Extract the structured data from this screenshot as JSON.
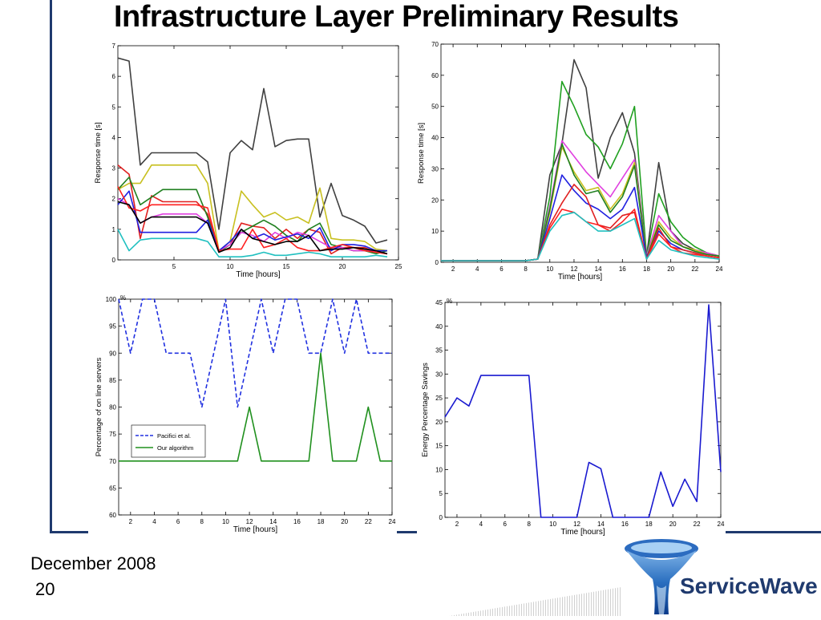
{
  "slide": {
    "title": "Infrastructure Layer Preliminary Results",
    "date": "December 2008",
    "page_number": "20",
    "logo_text": "ServiceWave",
    "accent_color": "#1f3a6e"
  },
  "chart_data": [
    {
      "type": "line",
      "xlabel": "Time [hours]",
      "ylabel": "Response time [s]",
      "xlim": [
        0,
        25
      ],
      "ylim": [
        0,
        7
      ],
      "xticks": [
        5,
        10,
        15,
        20,
        25
      ],
      "yticks": [
        0,
        1,
        2,
        3,
        4,
        5,
        6,
        7
      ],
      "x": [
        0,
        1,
        2,
        3,
        4,
        5,
        6,
        7,
        8,
        9,
        10,
        11,
        12,
        13,
        14,
        15,
        16,
        17,
        18,
        19,
        20,
        21,
        22,
        23,
        24
      ],
      "series": [
        {
          "color": "#404040",
          "values": [
            6.6,
            6.5,
            3.1,
            3.5,
            3.5,
            3.5,
            3.5,
            3.5,
            3.2,
            1.0,
            3.5,
            3.9,
            3.6,
            5.6,
            3.7,
            3.9,
            3.95,
            3.95,
            1.4,
            2.5,
            1.45,
            1.3,
            1.1,
            0.55,
            0.65
          ]
        },
        {
          "color": "#c8c020",
          "values": [
            2.3,
            2.5,
            2.5,
            3.1,
            3.1,
            3.1,
            3.1,
            3.1,
            2.5,
            0.3,
            0.6,
            2.25,
            1.8,
            1.4,
            1.55,
            1.3,
            1.4,
            1.2,
            2.35,
            0.7,
            0.65,
            0.65,
            0.6,
            0.35,
            0.3
          ]
        },
        {
          "color": "#e02020",
          "values": [
            3.1,
            2.8,
            0.7,
            2.1,
            1.9,
            1.9,
            1.9,
            1.9,
            1.5,
            0.3,
            0.5,
            1.2,
            1.1,
            1.05,
            0.7,
            1.0,
            0.7,
            1.0,
            0.9,
            0.2,
            0.4,
            0.4,
            0.4,
            0.25,
            0.2
          ]
        },
        {
          "color": "#208020",
          "values": [
            2.3,
            2.7,
            1.8,
            2.05,
            2.3,
            2.3,
            2.3,
            2.3,
            1.4,
            0.25,
            0.5,
            0.9,
            1.1,
            1.3,
            1.1,
            0.8,
            0.6,
            1.0,
            1.2,
            0.5,
            0.4,
            0.3,
            0.3,
            0.2,
            0.3
          ]
        },
        {
          "color": "#e040e0",
          "values": [
            2.0,
            1.8,
            1.2,
            1.4,
            1.5,
            1.5,
            1.5,
            1.5,
            1.2,
            0.3,
            0.5,
            0.9,
            0.8,
            0.6,
            0.9,
            0.7,
            0.9,
            0.8,
            0.6,
            0.4,
            0.4,
            0.3,
            0.3,
            0.3,
            0.2
          ]
        },
        {
          "color": "#2020e0",
          "values": [
            1.8,
            2.25,
            0.9,
            0.9,
            0.9,
            0.9,
            0.9,
            0.9,
            1.3,
            0.3,
            0.6,
            1.0,
            0.7,
            0.85,
            0.65,
            0.75,
            0.85,
            0.7,
            1.05,
            0.3,
            0.5,
            0.5,
            0.45,
            0.3,
            0.3
          ]
        },
        {
          "color": "#ff2020",
          "values": [
            2.4,
            1.7,
            1.6,
            1.8,
            1.8,
            1.8,
            1.8,
            1.8,
            1.7,
            0.3,
            0.35,
            0.35,
            1.0,
            0.4,
            0.5,
            0.7,
            0.4,
            0.3,
            0.3,
            0.4,
            0.5,
            0.4,
            0.3,
            0.25,
            0.2
          ]
        },
        {
          "color": "#000000",
          "values": [
            1.9,
            1.8,
            1.2,
            1.4,
            1.4,
            1.4,
            1.4,
            1.4,
            1.2,
            0.25,
            0.4,
            1.0,
            0.7,
            0.6,
            0.5,
            0.6,
            0.6,
            0.8,
            0.3,
            0.35,
            0.35,
            0.4,
            0.35,
            0.3,
            0.2
          ]
        },
        {
          "color": "#20c0c0",
          "values": [
            1.0,
            0.3,
            0.65,
            0.7,
            0.7,
            0.7,
            0.7,
            0.7,
            0.6,
            0.1,
            0.1,
            0.1,
            0.15,
            0.25,
            0.15,
            0.15,
            0.2,
            0.25,
            0.2,
            0.1,
            0.1,
            0.1,
            0.1,
            0.15,
            0.1
          ]
        }
      ]
    },
    {
      "type": "line",
      "xlabel": "Time [hours]",
      "ylabel": "Response time [s]",
      "xlim": [
        1,
        24
      ],
      "ylim": [
        0,
        70
      ],
      "xticks": [
        2,
        4,
        6,
        8,
        10,
        12,
        14,
        16,
        18,
        20,
        22,
        24
      ],
      "yticks": [
        0,
        10,
        20,
        30,
        40,
        50,
        60,
        70
      ],
      "x": [
        1,
        2,
        3,
        4,
        5,
        6,
        7,
        8,
        9,
        10,
        11,
        12,
        13,
        14,
        15,
        16,
        17,
        18,
        19,
        20,
        21,
        22,
        23,
        24
      ],
      "series": [
        {
          "color": "#404040",
          "values": [
            0.5,
            0.5,
            0.5,
            0.5,
            0.5,
            0.5,
            0.5,
            0.5,
            1,
            28,
            38,
            65,
            56,
            27,
            40,
            48,
            35,
            2,
            32,
            10,
            6,
            4,
            3,
            2
          ]
        },
        {
          "color": "#20a020",
          "values": [
            0.5,
            0.5,
            0.5,
            0.5,
            0.5,
            0.5,
            0.5,
            0.5,
            1,
            21,
            58,
            50,
            41,
            37,
            30,
            38,
            50,
            2,
            22,
            13,
            8,
            5,
            3,
            2
          ]
        },
        {
          "color": "#e040e0",
          "values": [
            0.5,
            0.5,
            0.5,
            0.5,
            0.5,
            0.5,
            0.5,
            0.5,
            1,
            18,
            39,
            34,
            29,
            25,
            21,
            27,
            33,
            2,
            15,
            10,
            5,
            4,
            3,
            2
          ]
        },
        {
          "color": "#c8c020",
          "values": [
            0.5,
            0.5,
            0.5,
            0.5,
            0.5,
            0.5,
            0.5,
            0.5,
            1,
            16,
            37,
            29,
            23,
            24,
            17,
            22,
            32,
            1.5,
            13,
            8,
            5,
            4,
            2.5,
            2
          ]
        },
        {
          "color": "#208020",
          "values": [
            0.5,
            0.5,
            0.5,
            0.5,
            0.5,
            0.5,
            0.5,
            0.5,
            1,
            17,
            38,
            28,
            22,
            23,
            16,
            21,
            31,
            1.5,
            12,
            7,
            5,
            3.5,
            2.5,
            2
          ]
        },
        {
          "color": "#2020e0",
          "values": [
            0.5,
            0.5,
            0.5,
            0.5,
            0.5,
            0.5,
            0.5,
            0.5,
            1,
            14,
            28,
            23,
            19,
            17,
            14,
            17,
            24,
            1.5,
            10,
            6,
            4,
            3,
            2,
            1.5
          ]
        },
        {
          "color": "#e02020",
          "values": [
            0.5,
            0.5,
            0.5,
            0.5,
            0.5,
            0.5,
            0.5,
            0.5,
            1,
            12,
            19,
            25,
            21,
            12,
            11,
            15,
            16,
            1,
            11,
            5,
            4,
            3,
            2,
            1.5
          ]
        },
        {
          "color": "#ff2020",
          "values": [
            0.5,
            0.5,
            0.5,
            0.5,
            0.5,
            0.5,
            0.5,
            0.5,
            1,
            11,
            17,
            16,
            13,
            12,
            10,
            13,
            17,
            1,
            9,
            5,
            3,
            2.5,
            2,
            1.5
          ]
        },
        {
          "color": "#20c0c0",
          "values": [
            0.5,
            0.5,
            0.5,
            0.5,
            0.5,
            0.5,
            0.5,
            0.5,
            1,
            10,
            15,
            16,
            13,
            10,
            10,
            12,
            14,
            1,
            7,
            4,
            3,
            2,
            1.5,
            1
          ]
        }
      ]
    },
    {
      "type": "line",
      "xlabel": "Time [hours]",
      "ylabel": "Percentage of on line servers",
      "unit": "%",
      "xlim": [
        1,
        24
      ],
      "ylim": [
        60,
        100
      ],
      "xticks": [
        2,
        4,
        6,
        8,
        10,
        12,
        14,
        16,
        18,
        20,
        22,
        24
      ],
      "yticks": [
        60,
        65,
        70,
        75,
        80,
        85,
        90,
        95,
        100
      ],
      "legend_position": "bottom-left",
      "x": [
        1,
        2,
        3,
        4,
        5,
        6,
        7,
        8,
        9,
        10,
        11,
        12,
        13,
        14,
        15,
        16,
        17,
        18,
        19,
        20,
        21,
        22,
        23,
        24
      ],
      "series": [
        {
          "name": "Pacifici et al.",
          "color": "#2030e0",
          "dashed": true,
          "values": [
            100,
            90,
            100,
            100,
            90,
            90,
            90,
            80,
            90,
            100,
            80,
            90,
            100,
            90,
            100,
            100,
            90,
            90,
            100,
            90,
            100,
            90,
            90,
            90
          ]
        },
        {
          "name": "Our algorithm",
          "color": "#20901e",
          "dashed": false,
          "values": [
            70,
            70,
            70,
            70,
            70,
            70,
            70,
            70,
            70,
            70,
            70,
            80,
            70,
            70,
            70,
            70,
            70,
            90,
            70,
            70,
            70,
            80,
            70,
            70
          ]
        }
      ]
    },
    {
      "type": "line",
      "xlabel": "Time [hours]",
      "ylabel": "Energy Percentage Savings",
      "unit": "%",
      "xlim": [
        1,
        24
      ],
      "ylim": [
        0,
        45
      ],
      "xticks": [
        2,
        4,
        6,
        8,
        10,
        12,
        14,
        16,
        18,
        20,
        22,
        24
      ],
      "yticks": [
        0,
        5,
        10,
        15,
        20,
        25,
        30,
        35,
        40,
        45
      ],
      "x": [
        1,
        2,
        3,
        4,
        5,
        6,
        7,
        8,
        9,
        10,
        11,
        12,
        13,
        14,
        15,
        16,
        17,
        18,
        19,
        20,
        21,
        22,
        23,
        24
      ],
      "series": [
        {
          "color": "#1a1ad0",
          "values": [
            21,
            25,
            23.3,
            29.7,
            29.7,
            29.7,
            29.7,
            29.7,
            0,
            0,
            0,
            0,
            11.5,
            10.2,
            0,
            0,
            0,
            0,
            9.5,
            2.3,
            8,
            3.3,
            44.5,
            9.5
          ]
        }
      ]
    }
  ]
}
